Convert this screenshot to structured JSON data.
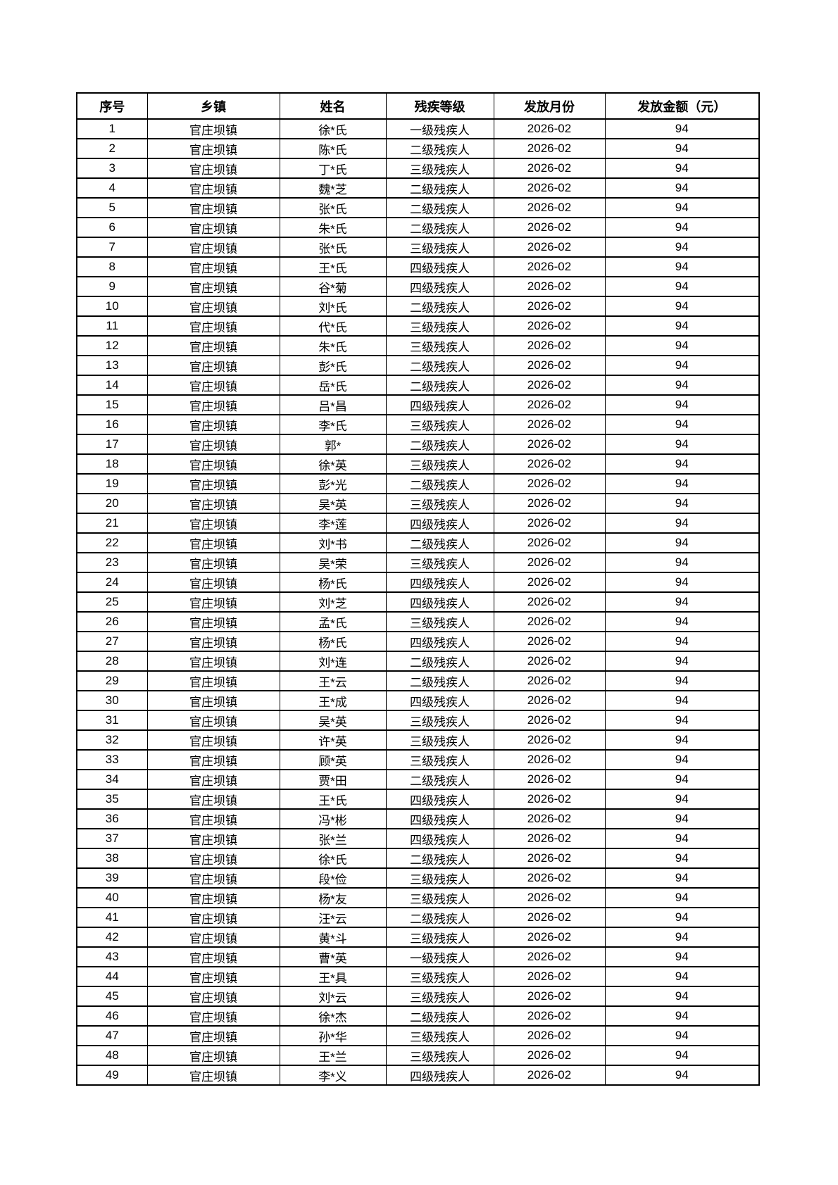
{
  "document": {
    "table": {
      "headers": [
        "序号",
        "乡镇",
        "姓名",
        "残疾等级",
        "发放月份",
        "发放金额（元）"
      ],
      "rows": [
        [
          "1",
          "官庄坝镇",
          "徐*氏",
          "一级残疾人",
          "2026-02",
          "94"
        ],
        [
          "2",
          "官庄坝镇",
          "陈*氏",
          "二级残疾人",
          "2026-02",
          "94"
        ],
        [
          "3",
          "官庄坝镇",
          "丁*氏",
          "三级残疾人",
          "2026-02",
          "94"
        ],
        [
          "4",
          "官庄坝镇",
          "魏*芝",
          "二级残疾人",
          "2026-02",
          "94"
        ],
        [
          "5",
          "官庄坝镇",
          "张*氏",
          "二级残疾人",
          "2026-02",
          "94"
        ],
        [
          "6",
          "官庄坝镇",
          "朱*氏",
          "二级残疾人",
          "2026-02",
          "94"
        ],
        [
          "7",
          "官庄坝镇",
          "张*氏",
          "三级残疾人",
          "2026-02",
          "94"
        ],
        [
          "8",
          "官庄坝镇",
          "王*氏",
          "四级残疾人",
          "2026-02",
          "94"
        ],
        [
          "9",
          "官庄坝镇",
          "谷*菊",
          "四级残疾人",
          "2026-02",
          "94"
        ],
        [
          "10",
          "官庄坝镇",
          "刘*氏",
          "二级残疾人",
          "2026-02",
          "94"
        ],
        [
          "11",
          "官庄坝镇",
          "代*氏",
          "三级残疾人",
          "2026-02",
          "94"
        ],
        [
          "12",
          "官庄坝镇",
          "朱*氏",
          "三级残疾人",
          "2026-02",
          "94"
        ],
        [
          "13",
          "官庄坝镇",
          "彭*氏",
          "二级残疾人",
          "2026-02",
          "94"
        ],
        [
          "14",
          "官庄坝镇",
          "岳*氏",
          "二级残疾人",
          "2026-02",
          "94"
        ],
        [
          "15",
          "官庄坝镇",
          "吕*昌",
          "四级残疾人",
          "2026-02",
          "94"
        ],
        [
          "16",
          "官庄坝镇",
          "李*氏",
          "三级残疾人",
          "2026-02",
          "94"
        ],
        [
          "17",
          "官庄坝镇",
          "郭*",
          "二级残疾人",
          "2026-02",
          "94"
        ],
        [
          "18",
          "官庄坝镇",
          "徐*英",
          "三级残疾人",
          "2026-02",
          "94"
        ],
        [
          "19",
          "官庄坝镇",
          "彭*光",
          "二级残疾人",
          "2026-02",
          "94"
        ],
        [
          "20",
          "官庄坝镇",
          "吴*英",
          "三级残疾人",
          "2026-02",
          "94"
        ],
        [
          "21",
          "官庄坝镇",
          "李*莲",
          "四级残疾人",
          "2026-02",
          "94"
        ],
        [
          "22",
          "官庄坝镇",
          "刘*书",
          "二级残疾人",
          "2026-02",
          "94"
        ],
        [
          "23",
          "官庄坝镇",
          "吴*荣",
          "三级残疾人",
          "2026-02",
          "94"
        ],
        [
          "24",
          "官庄坝镇",
          "杨*氏",
          "四级残疾人",
          "2026-02",
          "94"
        ],
        [
          "25",
          "官庄坝镇",
          "刘*芝",
          "四级残疾人",
          "2026-02",
          "94"
        ],
        [
          "26",
          "官庄坝镇",
          "孟*氏",
          "三级残疾人",
          "2026-02",
          "94"
        ],
        [
          "27",
          "官庄坝镇",
          "杨*氏",
          "四级残疾人",
          "2026-02",
          "94"
        ],
        [
          "28",
          "官庄坝镇",
          "刘*连",
          "二级残疾人",
          "2026-02",
          "94"
        ],
        [
          "29",
          "官庄坝镇",
          "王*云",
          "二级残疾人",
          "2026-02",
          "94"
        ],
        [
          "30",
          "官庄坝镇",
          "王*成",
          "四级残疾人",
          "2026-02",
          "94"
        ],
        [
          "31",
          "官庄坝镇",
          "吴*英",
          "三级残疾人",
          "2026-02",
          "94"
        ],
        [
          "32",
          "官庄坝镇",
          "许*英",
          "三级残疾人",
          "2026-02",
          "94"
        ],
        [
          "33",
          "官庄坝镇",
          "顾*英",
          "三级残疾人",
          "2026-02",
          "94"
        ],
        [
          "34",
          "官庄坝镇",
          "贾*田",
          "二级残疾人",
          "2026-02",
          "94"
        ],
        [
          "35",
          "官庄坝镇",
          "王*氏",
          "四级残疾人",
          "2026-02",
          "94"
        ],
        [
          "36",
          "官庄坝镇",
          "冯*彬",
          "四级残疾人",
          "2026-02",
          "94"
        ],
        [
          "37",
          "官庄坝镇",
          "张*兰",
          "四级残疾人",
          "2026-02",
          "94"
        ],
        [
          "38",
          "官庄坝镇",
          "徐*氏",
          "二级残疾人",
          "2026-02",
          "94"
        ],
        [
          "39",
          "官庄坝镇",
          "段*俭",
          "三级残疾人",
          "2026-02",
          "94"
        ],
        [
          "40",
          "官庄坝镇",
          "杨*友",
          "三级残疾人",
          "2026-02",
          "94"
        ],
        [
          "41",
          "官庄坝镇",
          "汪*云",
          "二级残疾人",
          "2026-02",
          "94"
        ],
        [
          "42",
          "官庄坝镇",
          "黄*斗",
          "三级残疾人",
          "2026-02",
          "94"
        ],
        [
          "43",
          "官庄坝镇",
          "曹*英",
          "一级残疾人",
          "2026-02",
          "94"
        ],
        [
          "44",
          "官庄坝镇",
          "王*具",
          "三级残疾人",
          "2026-02",
          "94"
        ],
        [
          "45",
          "官庄坝镇",
          "刘*云",
          "三级残疾人",
          "2026-02",
          "94"
        ],
        [
          "46",
          "官庄坝镇",
          "徐*杰",
          "二级残疾人",
          "2026-02",
          "94"
        ],
        [
          "47",
          "官庄坝镇",
          "孙*华",
          "三级残疾人",
          "2026-02",
          "94"
        ],
        [
          "48",
          "官庄坝镇",
          "王*兰",
          "三级残疾人",
          "2026-02",
          "94"
        ],
        [
          "49",
          "官庄坝镇",
          "李*义",
          "四级残疾人",
          "2026-02",
          "94"
        ]
      ]
    },
    "colors": {
      "border": "#000000",
      "text": "#000000",
      "background": "#ffffff"
    }
  }
}
